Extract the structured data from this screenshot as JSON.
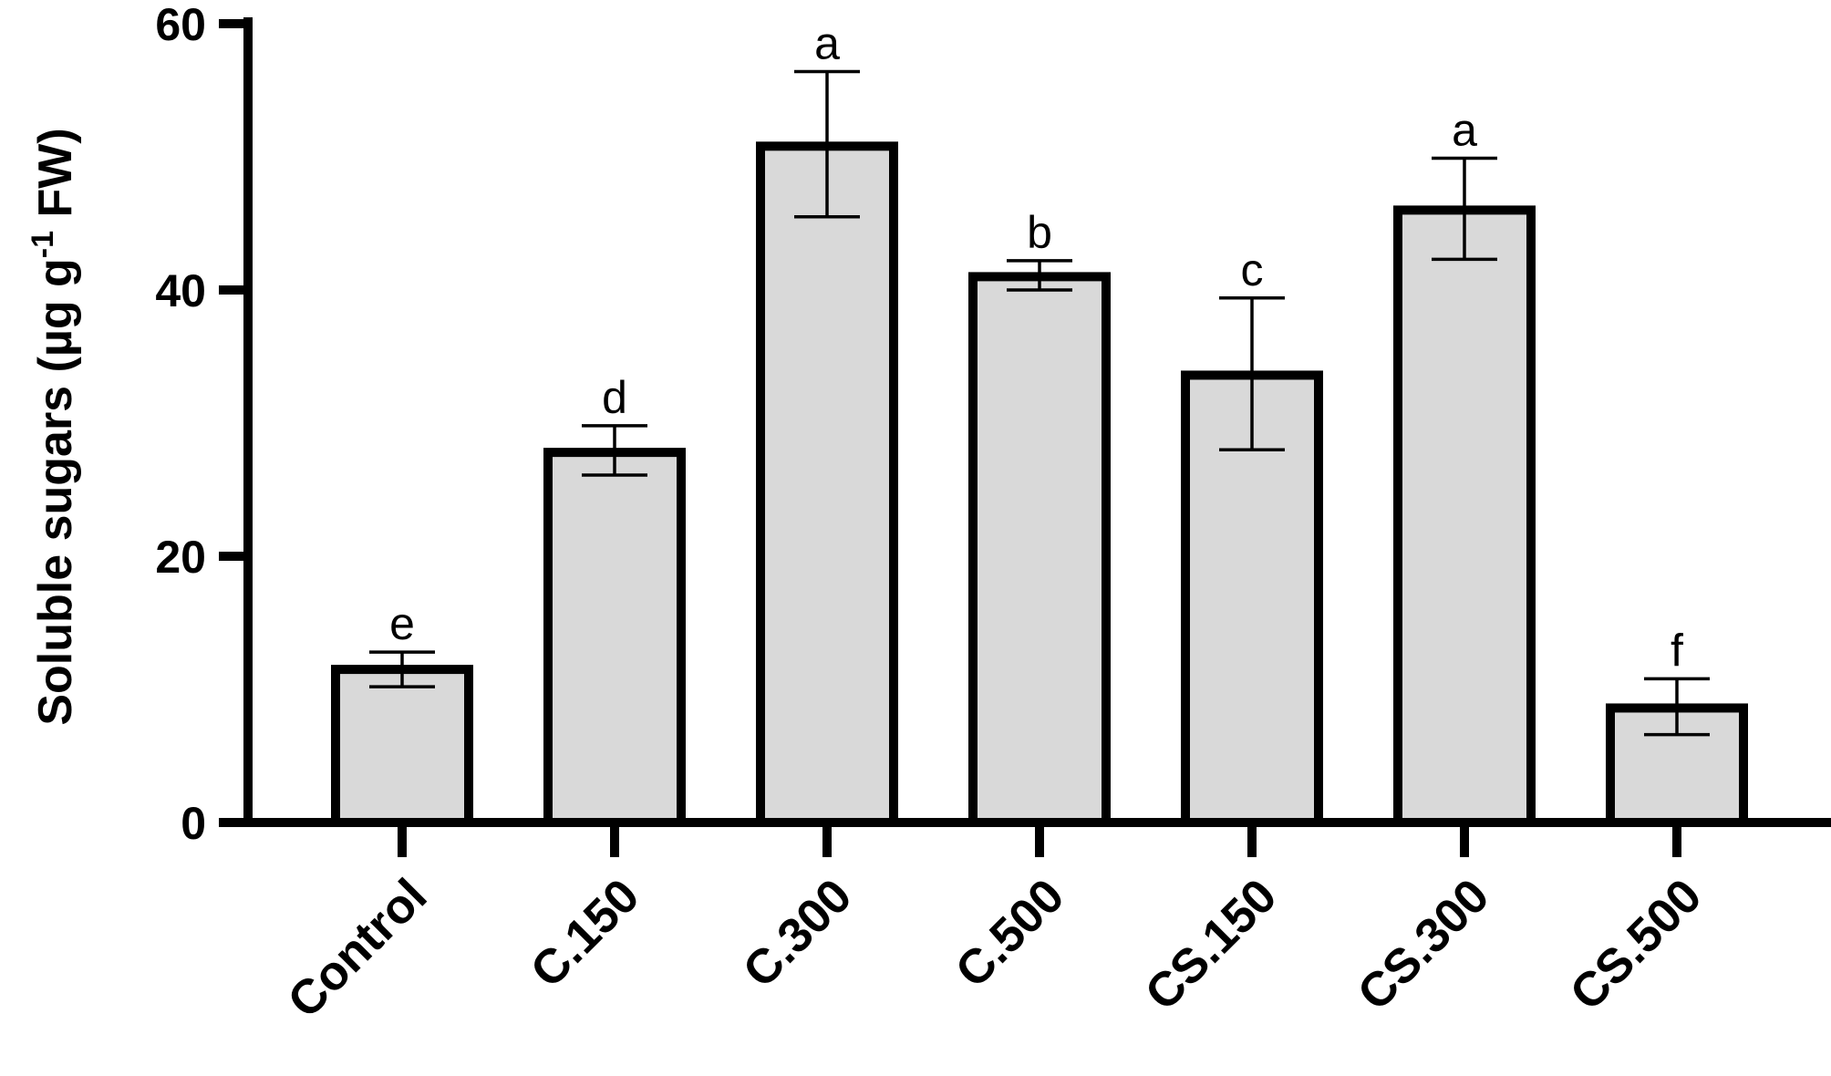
{
  "chart_data": {
    "type": "bar",
    "title": "",
    "xlabel": "",
    "ylabel": {
      "prefix": "Soluble sugars (µg g",
      "superscript": "-1",
      "suffix": " FW)"
    },
    "ylim": [
      0,
      60
    ],
    "yticks": [
      "0",
      "20",
      "40",
      "60"
    ],
    "grid": false,
    "legend": "none",
    "categories": [
      "Control",
      "C.150",
      "C.300",
      "C.500",
      "CS.150",
      "CS.300",
      "CS.500"
    ],
    "values": [
      11.5,
      27.8,
      50.8,
      41.0,
      33.6,
      46.0,
      8.6
    ],
    "error_upper": [
      1.3,
      2.0,
      5.6,
      1.2,
      5.8,
      3.9,
      2.2
    ],
    "error_lower": [
      1.3,
      1.7,
      5.3,
      1.0,
      5.6,
      3.7,
      2.0
    ],
    "significance_letters": [
      "e",
      "d",
      "a",
      "b",
      "c",
      "a",
      "f"
    ],
    "colors": {
      "bar_fill": "#d9d9d9",
      "bar_edge": "#000000",
      "axis": "#000000"
    }
  }
}
